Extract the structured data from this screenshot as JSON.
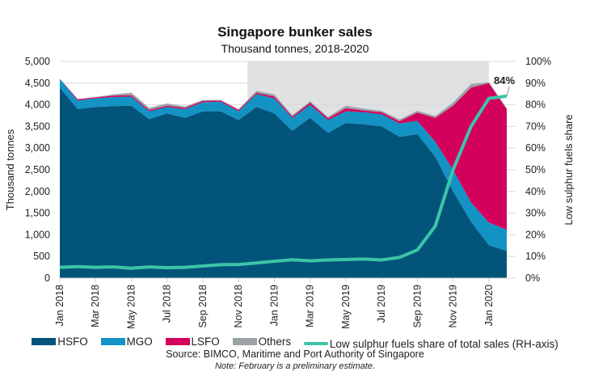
{
  "chart_data": {
    "type": "area",
    "title": "Singapore bunker sales",
    "subtitle": "Thousand tonnes, 2018-2020",
    "ylabel": "Thousand tonnes",
    "y2label": "Low sulphur fuels share",
    "ylim": [
      0,
      5000
    ],
    "y2lim": [
      0,
      100
    ],
    "yticks": [
      "0",
      "500",
      "1,000",
      "1,500",
      "2,000",
      "2,500",
      "3,000",
      "3,500",
      "4,000",
      "4,500",
      "5,000"
    ],
    "y2ticks": [
      "0%",
      "10%",
      "20%",
      "30%",
      "40%",
      "50%",
      "60%",
      "70%",
      "80%",
      "90%",
      "100%"
    ],
    "x": [
      "Jan 2018",
      "Feb 2018",
      "Mar 2018",
      "Apr 2018",
      "May 2018",
      "Jun 2018",
      "Jul 2018",
      "Aug 2018",
      "Sep 2018",
      "Oct 2018",
      "Nov 2018",
      "Dec 2018",
      "Jan 2019",
      "Feb 2019",
      "Mar 2019",
      "Apr 2019",
      "May 2019",
      "Jun 2019",
      "Jul 2019",
      "Aug 2019",
      "Sep 2019",
      "Oct 2019",
      "Nov 2019",
      "Dec 2019",
      "Jan 2020",
      "Feb 2020"
    ],
    "xtick_labels": [
      "Jan 2018",
      "Mar 2018",
      "May 2018",
      "Jul 2018",
      "Sep 2018",
      "Nov 2018",
      "Jan 2019",
      "Mar 2019",
      "May 2019",
      "Jul 2019",
      "Sep 2019",
      "Nov 2019",
      "Jan 2020"
    ],
    "shaded_period": [
      "Dec 2018",
      "Jan 2020"
    ],
    "series": [
      {
        "name": "HSFO",
        "color": "#03547a",
        "values": [
          4400,
          3900,
          3950,
          3970,
          3980,
          3670,
          3800,
          3700,
          3850,
          3850,
          3650,
          3950,
          3800,
          3400,
          3700,
          3350,
          3580,
          3550,
          3500,
          3260,
          3320,
          2800,
          2000,
          1300,
          760,
          630
        ]
      },
      {
        "name": "MGO",
        "color": "#1392c4",
        "values": [
          200,
          200,
          200,
          210,
          210,
          180,
          150,
          200,
          210,
          220,
          200,
          300,
          350,
          300,
          300,
          300,
          270,
          280,
          280,
          310,
          310,
          350,
          500,
          450,
          520,
          490
        ]
      },
      {
        "name": "LSFO",
        "color": "#d4015c",
        "values": [
          0,
          30,
          20,
          30,
          30,
          30,
          30,
          30,
          30,
          30,
          30,
          30,
          40,
          30,
          50,
          40,
          70,
          40,
          50,
          50,
          190,
          550,
          1480,
          2650,
          3220,
          2780
        ]
      },
      {
        "name": "Others",
        "color": "#9ca3a6",
        "values": [
          0,
          0,
          10,
          30,
          60,
          50,
          50,
          30,
          20,
          10,
          20,
          40,
          50,
          30,
          30,
          30,
          60,
          40,
          30,
          40,
          40,
          40,
          70,
          80,
          20,
          20
        ]
      },
      {
        "name": "Low sulphur fuels share of total sales (RH-axis)",
        "color": "#3cc5a8",
        "axis": "right",
        "values": [
          5,
          5.3,
          5,
          5.2,
          4.6,
          5.2,
          4.8,
          5,
          5.6,
          6.2,
          6.3,
          7,
          7.8,
          8.5,
          8,
          8.4,
          8.6,
          8.8,
          8.4,
          9.6,
          13,
          24,
          50,
          70,
          83,
          84
        ]
      }
    ],
    "annotation": "84%",
    "legend_position": "bottom",
    "grid": true
  },
  "footer": {
    "source": "Source: BIMCO, Maritime and Port Authority of Singapore",
    "note": "Note: February is a preliminary estimate."
  }
}
